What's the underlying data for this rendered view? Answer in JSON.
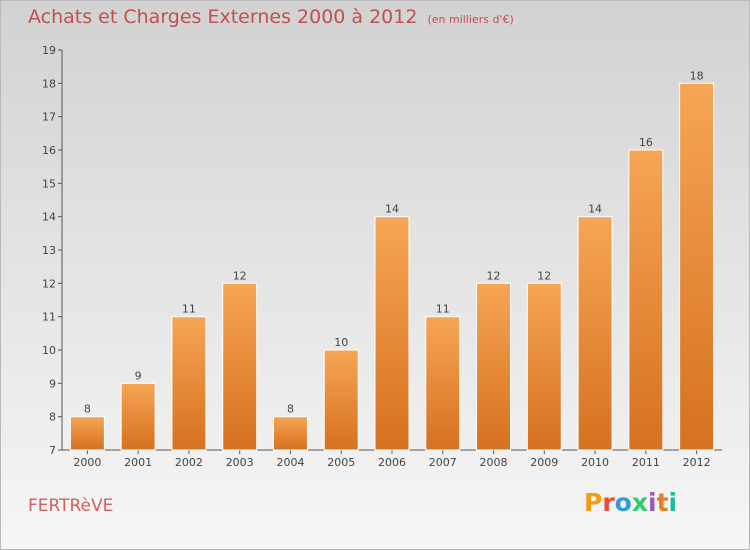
{
  "header": {
    "title": "Achats et Charges Externes 2000 à 2012",
    "subtitle": "(en milliers d'€)"
  },
  "footer": {
    "commune": "FERTRèVE",
    "brand": "Proxiti",
    "brand_colors": [
      "#f39c12",
      "#e74c3c",
      "#3498db",
      "#2ecc71",
      "#9b59b6",
      "#e67e22",
      "#1abc9c"
    ]
  },
  "colors": {
    "bar_top": "#f6a556",
    "bar_bottom": "#d6711f",
    "title": "#c0504d",
    "axis": "#555555"
  },
  "chart_data": {
    "type": "bar",
    "title": "Achats et Charges Externes 2000 à 2012",
    "subtitle": "(en milliers d'€)",
    "xlabel": "",
    "ylabel": "",
    "categories": [
      "2000",
      "2001",
      "2002",
      "2003",
      "2004",
      "2005",
      "2006",
      "2007",
      "2008",
      "2009",
      "2010",
      "2011",
      "2012"
    ],
    "values": [
      8,
      9,
      11,
      12,
      8,
      10,
      14,
      11,
      12,
      12,
      14,
      16,
      18
    ],
    "ylim": [
      7,
      19
    ],
    "yticks": [
      7,
      8,
      9,
      10,
      11,
      12,
      13,
      14,
      15,
      16,
      17,
      18,
      19
    ],
    "grid": false,
    "data_labels": true
  }
}
